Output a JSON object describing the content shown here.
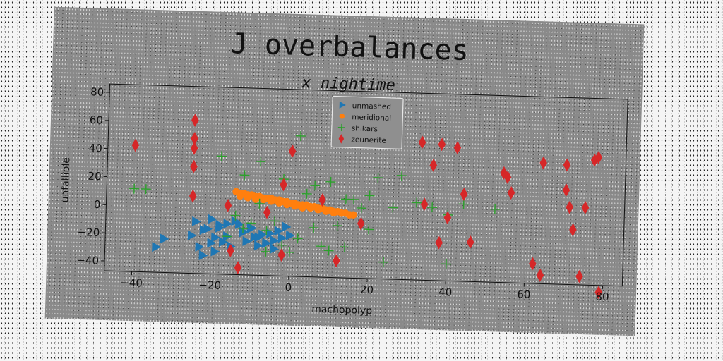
{
  "chart_data": {
    "type": "scatter",
    "title": "J overbalances",
    "subtitle": "x nightime",
    "xlabel": "machopolyp",
    "ylabel": "unfallible",
    "xlim": [
      -47,
      85
    ],
    "ylim": [
      -47,
      86
    ],
    "xticks": [
      -40,
      -20,
      0,
      20,
      40,
      60,
      80
    ],
    "yticks": [
      -40,
      -20,
      0,
      20,
      40,
      60,
      80
    ],
    "grid": false,
    "legend_position": "top-center",
    "series": [
      {
        "name": "unmashed",
        "marker": "triangle-right",
        "color": "#1f77b4",
        "x": [
          -34,
          -32,
          -25,
          -23,
          -22,
          -21,
          -20,
          -19,
          -18,
          -17,
          -16,
          -15,
          -13,
          -12,
          -11,
          -10,
          -9,
          -8,
          -7,
          -6,
          -5,
          -4,
          -3,
          -2,
          -1,
          0,
          -24,
          -22,
          -20,
          -18,
          -16,
          -14,
          -12,
          -10,
          -8,
          -6,
          -4,
          -19
        ],
        "y": [
          -29,
          -23,
          -20,
          -28,
          -34,
          -15,
          -25,
          -31,
          -12,
          -24,
          -20,
          -27,
          -11,
          -17,
          -23,
          -14,
          -20,
          -26,
          -18,
          -24,
          -17,
          -22,
          -15,
          -20,
          -12,
          -18,
          -10,
          -16,
          -8,
          -14,
          -11,
          -9,
          -16,
          -13,
          -20,
          -24,
          -28,
          -21
        ]
      },
      {
        "name": "meridional",
        "marker": "circle",
        "color": "#ff7f0e",
        "x": [
          -14,
          -13,
          -12,
          -11,
          -10,
          -9,
          -8,
          -7,
          -6,
          -5,
          -4,
          -3,
          -2,
          -1,
          0,
          1,
          2,
          3,
          4,
          5,
          6,
          7,
          8,
          9,
          10,
          11,
          12,
          13,
          14,
          15,
          16,
          -13,
          -11,
          -9,
          -7,
          -5,
          -3,
          -1,
          1,
          3,
          5,
          7,
          9,
          11,
          13,
          15
        ],
        "y": [
          12,
          11,
          11,
          10,
          10,
          9,
          9,
          8,
          8,
          8,
          7,
          7,
          6,
          6,
          5,
          5,
          4,
          4,
          4,
          3,
          3,
          2,
          2,
          1,
          1,
          0,
          0,
          -1,
          -1,
          -2,
          -2,
          9,
          8,
          7,
          7,
          6,
          5,
          4,
          3,
          2,
          2,
          1,
          0,
          -1,
          -1,
          -2
        ]
      },
      {
        "name": "shikars",
        "marker": "plus",
        "color": "#2ca02c",
        "x": [
          -40,
          -37,
          -18,
          -12,
          -8,
          -2,
          2,
          6,
          10,
          14,
          16,
          20,
          22,
          26,
          28,
          32,
          36,
          40,
          44,
          -10,
          -6,
          -4,
          0,
          4,
          8,
          12,
          -14,
          -16,
          -8,
          -12,
          -6,
          -2,
          2,
          6,
          10,
          14,
          18,
          20,
          24,
          40,
          52
        ],
        "y": [
          12,
          12,
          37,
          24,
          34,
          22,
          53,
          18,
          21,
          9,
          9,
          12,
          25,
          4,
          27,
          8,
          5,
          -35,
          8,
          -10,
          -15,
          -8,
          -30,
          12,
          -25,
          -10,
          -5,
          -20,
          4,
          -14,
          -30,
          -25,
          -20,
          -12,
          -28,
          -25,
          3,
          -12,
          -35,
          0,
          5
        ]
      },
      {
        "name": "zeunerite",
        "marker": "thin-diamond",
        "color": "#d62728",
        "x": [
          -40,
          -25,
          -25,
          -25,
          -25,
          -25,
          -16,
          -15,
          -13,
          -6,
          -2,
          -2,
          0,
          8,
          12,
          18,
          22,
          33,
          34,
          36,
          38,
          38,
          40,
          42,
          44,
          46,
          54,
          55,
          56,
          62,
          64,
          64,
          70,
          70,
          71,
          72,
          74,
          75,
          77,
          78,
          79
        ],
        "y": [
          43,
          62,
          49,
          42,
          29,
          8,
          2,
          -30,
          -42,
          -2,
          18,
          -32,
          42,
          8,
          -35,
          -8,
          52,
          51,
          7,
          35,
          50,
          -20,
          -2,
          48,
          15,
          -19,
          31,
          28,
          17,
          -33,
          39,
          -41,
          38,
          20,
          8,
          -8,
          -41,
          8,
          42,
          44,
          -52
        ]
      }
    ]
  }
}
